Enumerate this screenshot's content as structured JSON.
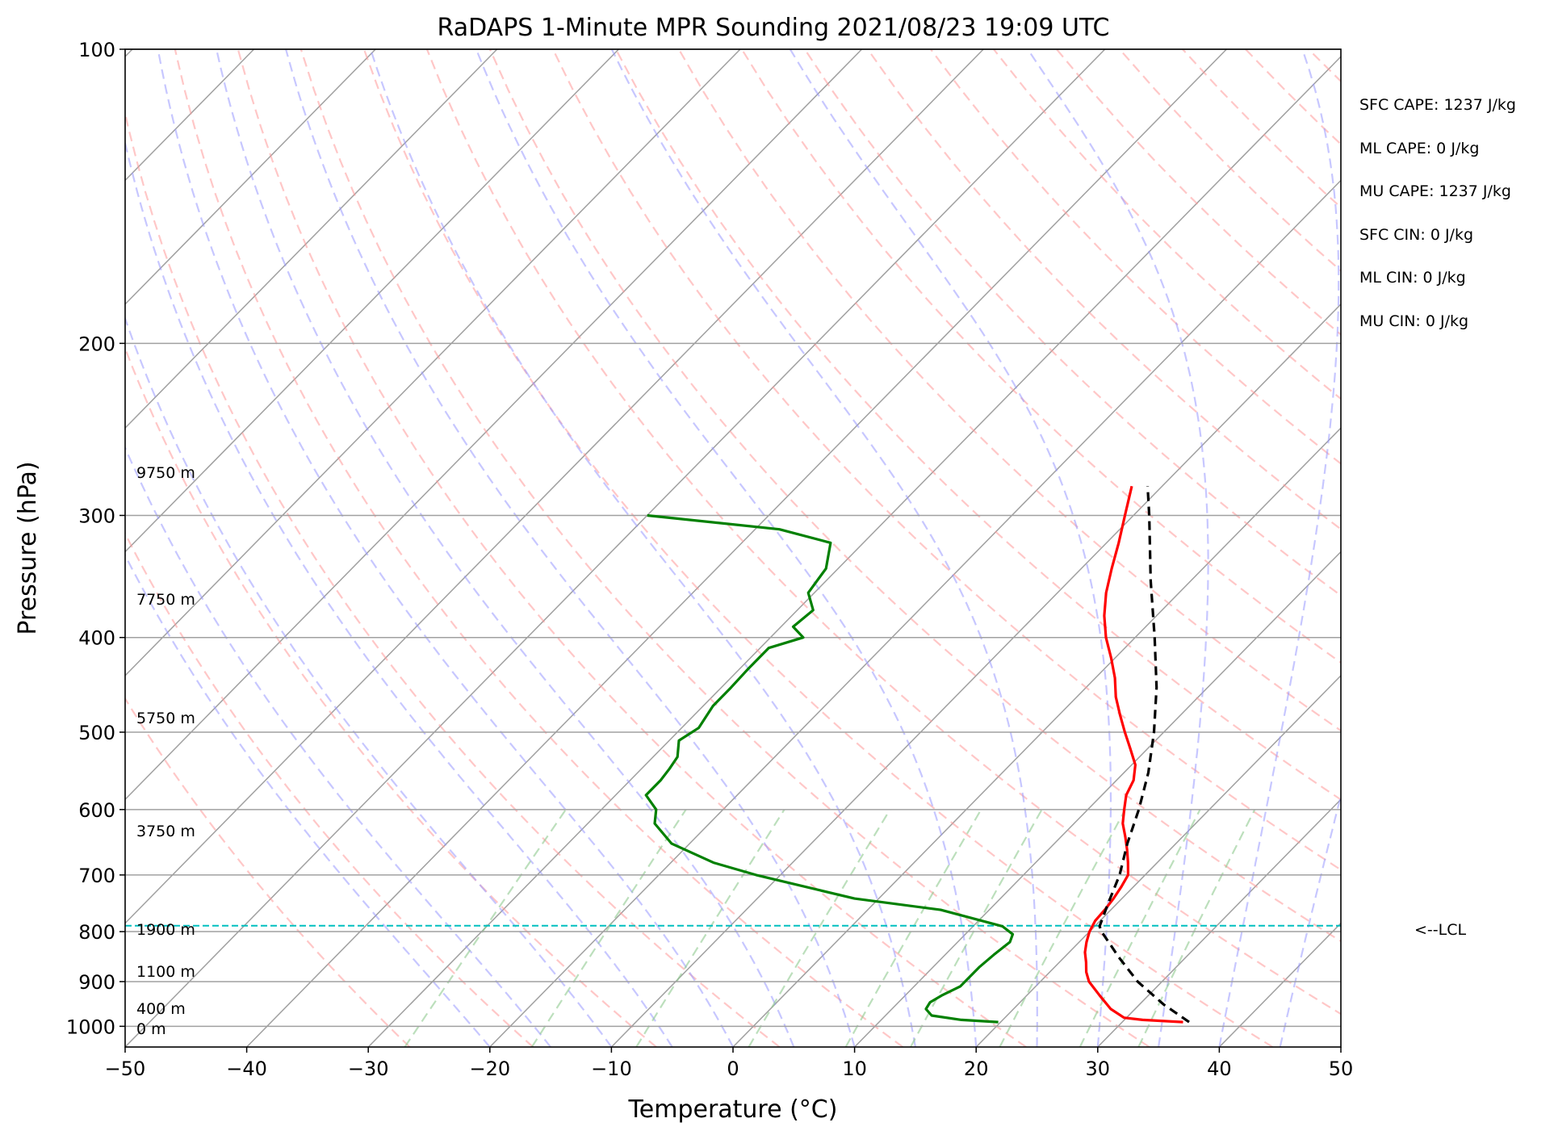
{
  "chart_data": {
    "type": "line",
    "title": "RaDAPS 1-Minute MPR Sounding 2021/08/23 19:09 UTC",
    "xlabel": "Temperature (°C)",
    "ylabel": "Pressure (hPa)",
    "xlim": [
      -50,
      50
    ],
    "ylim": [
      1050,
      100
    ],
    "y_scale": "log",
    "skew": "skew-T log-P",
    "grid": true,
    "x_ticks": [
      "−50",
      "−40",
      "−30",
      "−20",
      "−10",
      "0",
      "10",
      "20",
      "30",
      "40",
      "50"
    ],
    "y_ticks": [
      "100",
      "200",
      "300",
      "400",
      "500",
      "600",
      "700",
      "800",
      "900",
      "1000"
    ],
    "height_labels": [
      "9750 m",
      "7750 m",
      "5750 m",
      "3750 m",
      "1900 m",
      "1100 m",
      "400 m",
      "0 m"
    ],
    "lcl_label": "<--LCL",
    "lcl_pressure": 789,
    "colors": {
      "temperature": "#ff0000",
      "dewpoint": "#008000",
      "parcel": "#000000",
      "dry_adiabats": "#ff9999",
      "moist_adiabats": "#9999ff",
      "mixing_ratio": "#8fc98f",
      "isotherms": "#a0a0a0",
      "lcl_line": "#00bfbf"
    },
    "series": [
      {
        "values_p_T": [
          [
            990,
            35.0
          ],
          [
            985,
            31.5
          ],
          [
            980,
            29.8
          ],
          [
            960,
            28.0
          ],
          [
            930,
            26.0
          ],
          [
            900,
            24.0
          ],
          [
            880,
            23.0
          ],
          [
            860,
            22.2
          ],
          [
            840,
            21.3
          ],
          [
            820,
            20.6
          ],
          [
            800,
            20.0
          ],
          [
            780,
            19.6
          ],
          [
            760,
            19.5
          ],
          [
            740,
            19.3
          ],
          [
            720,
            19.0
          ],
          [
            700,
            18.6
          ],
          [
            680,
            17.6
          ],
          [
            660,
            16.5
          ],
          [
            640,
            15.3
          ],
          [
            620,
            14.0
          ],
          [
            600,
            13.0
          ],
          [
            580,
            12.0
          ],
          [
            560,
            11.4
          ],
          [
            540,
            10.3
          ],
          [
            520,
            8.6
          ],
          [
            500,
            6.8
          ],
          [
            480,
            5.0
          ],
          [
            460,
            3.2
          ],
          [
            440,
            1.6
          ],
          [
            420,
            -0.3
          ],
          [
            400,
            -2.4
          ],
          [
            380,
            -4.3
          ],
          [
            360,
            -6.0
          ],
          [
            340,
            -7.5
          ],
          [
            320,
            -9.0
          ],
          [
            300,
            -10.7
          ],
          [
            280,
            -12.5
          ]
        ]
      },
      {
        "values_p_Td": [
          [
            990,
            19.8
          ],
          [
            985,
            16.6
          ],
          [
            975,
            13.8
          ],
          [
            960,
            12.8
          ],
          [
            945,
            12.6
          ],
          [
            930,
            13.0
          ],
          [
            910,
            13.8
          ],
          [
            895,
            13.8
          ],
          [
            870,
            13.8
          ],
          [
            845,
            14.0
          ],
          [
            820,
            14.3
          ],
          [
            805,
            13.9
          ],
          [
            790,
            12.4
          ],
          [
            760,
            6.0
          ],
          [
            740,
            -2.0
          ],
          [
            700,
            -12.0
          ],
          [
            680,
            -16.5
          ],
          [
            650,
            -21.5
          ],
          [
            620,
            -24.5
          ],
          [
            600,
            -25.5
          ],
          [
            580,
            -27.5
          ],
          [
            560,
            -27.5
          ],
          [
            545,
            -27.7
          ],
          [
            530,
            -28.0
          ],
          [
            510,
            -29.2
          ],
          [
            495,
            -28.6
          ],
          [
            470,
            -29.2
          ],
          [
            450,
            -29.2
          ],
          [
            430,
            -29.3
          ],
          [
            410,
            -29.3
          ],
          [
            400,
            -27.3
          ],
          [
            390,
            -29.0
          ],
          [
            375,
            -28.7
          ],
          [
            360,
            -30.5
          ],
          [
            340,
            -31.0
          ],
          [
            320,
            -32.7
          ],
          [
            310,
            -38.0
          ],
          [
            300,
            -50.0
          ]
        ]
      },
      {
        "values_p_T": [
          [
            990,
            35.5
          ],
          [
            950,
            32.0
          ],
          [
            900,
            28.0
          ],
          [
            850,
            24.5
          ],
          [
            800,
            21.0
          ],
          [
            790,
            20.4
          ],
          [
            750,
            19.3
          ],
          [
            700,
            17.9
          ],
          [
            650,
            16.0
          ],
          [
            600,
            14.2
          ],
          [
            550,
            12.0
          ],
          [
            500,
            9.2
          ],
          [
            450,
            5.8
          ],
          [
            400,
            1.6
          ],
          [
            350,
            -3.3
          ],
          [
            300,
            -8.7
          ],
          [
            280,
            -11.2
          ]
        ]
      }
    ]
  },
  "stats": {
    "sfc_cape": "SFC CAPE: 1237 J/kg",
    "ml_cape": "ML CAPE: 0 J/kg",
    "mu_cape": "MU CAPE: 1237 J/kg",
    "sfc_cin": "SFC CIN: 0 J/kg",
    "ml_cin": "ML CIN: 0 J/kg",
    "mu_cin": "MU CIN: 0 J/kg"
  }
}
